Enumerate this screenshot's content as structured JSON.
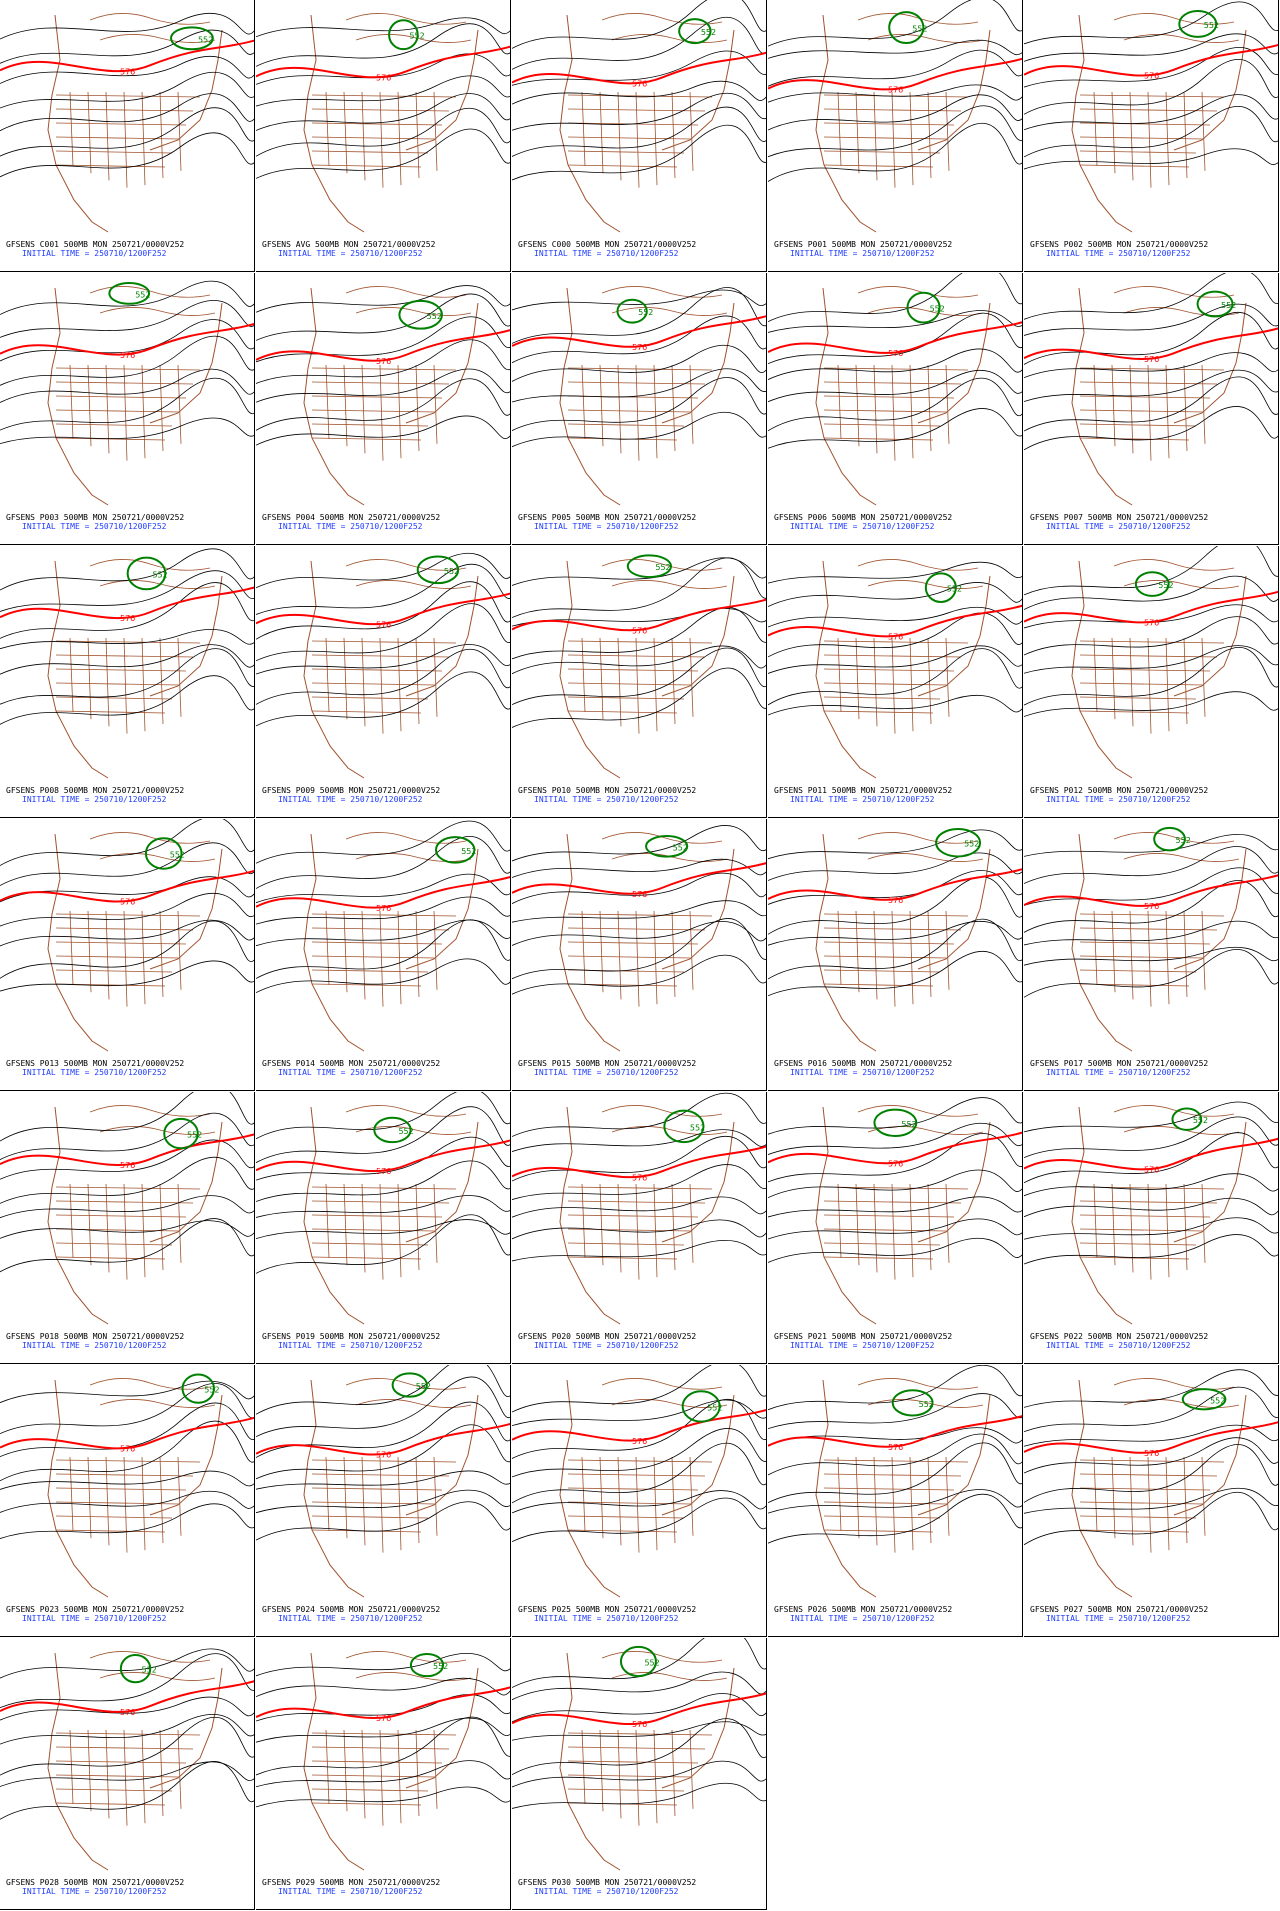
{
  "panels": [
    {
      "caption": "GFSENS C001 500MB MON 250721/0000V252",
      "init": "INITIAL TIME = 250710/1200F252"
    },
    {
      "caption": "GFSENS AVG 500MB MON 250721/0000V252",
      "init": "INITIAL TIME = 250710/1200F252"
    },
    {
      "caption": "GFSENS C000 500MB MON 250721/0000V252",
      "init": "INITIAL TIME = 250710/1200F252"
    },
    {
      "caption": "GFSENS P001 500MB MON 250721/0000V252",
      "init": "INITIAL TIME = 250710/1200F252"
    },
    {
      "caption": "GFSENS P002 500MB MON 250721/0000V252",
      "init": "INITIAL TIME = 250710/1200F252"
    },
    {
      "caption": "GFSENS P003 500MB MON 250721/0000V252",
      "init": "INITIAL TIME = 250710/1200F252"
    },
    {
      "caption": "GFSENS P004 500MB MON 250721/0000V252",
      "init": "INITIAL TIME = 250710/1200F252"
    },
    {
      "caption": "GFSENS P005 500MB MON 250721/0000V252",
      "init": "INITIAL TIME = 250710/1200F252"
    },
    {
      "caption": "GFSENS P006 500MB MON 250721/0000V252",
      "init": "INITIAL TIME = 250710/1200F252"
    },
    {
      "caption": "GFSENS P007 500MB MON 250721/0000V252",
      "init": "INITIAL TIME = 250710/1200F252"
    },
    {
      "caption": "GFSENS P008 500MB MON 250721/0000V252",
      "init": "INITIAL TIME = 250710/1200F252"
    },
    {
      "caption": "GFSENS P009 500MB MON 250721/0000V252",
      "init": "INITIAL TIME = 250710/1200F252"
    },
    {
      "caption": "GFSENS P010 500MB MON 250721/0000V252",
      "init": "INITIAL TIME = 250710/1200F252"
    },
    {
      "caption": "GFSENS P011 500MB MON 250721/0000V252",
      "init": "INITIAL TIME = 250710/1200F252"
    },
    {
      "caption": "GFSENS P012 500MB MON 250721/0000V252",
      "init": "INITIAL TIME = 250710/1200F252"
    },
    {
      "caption": "GFSENS P013 500MB MON 250721/0000V252",
      "init": "INITIAL TIME = 250710/1200F252"
    },
    {
      "caption": "GFSENS P014 500MB MON 250721/0000V252",
      "init": "INITIAL TIME = 250710/1200F252"
    },
    {
      "caption": "GFSENS P015 500MB MON 250721/0000V252",
      "init": "INITIAL TIME = 250710/1200F252"
    },
    {
      "caption": "GFSENS P016 500MB MON 250721/0000V252",
      "init": "INITIAL TIME = 250710/1200F252"
    },
    {
      "caption": "GFSENS P017 500MB MON 250721/0000V252",
      "init": "INITIAL TIME = 250710/1200F252"
    },
    {
      "caption": "GFSENS P018 500MB MON 250721/0000V252",
      "init": "INITIAL TIME = 250710/1200F252"
    },
    {
      "caption": "GFSENS P019 500MB MON 250721/0000V252",
      "init": "INITIAL TIME = 250710/1200F252"
    },
    {
      "caption": "GFSENS P020 500MB MON 250721/0000V252",
      "init": "INITIAL TIME = 250710/1200F252"
    },
    {
      "caption": "GFSENS P021 500MB MON 250721/0000V252",
      "init": "INITIAL TIME = 250710/1200F252"
    },
    {
      "caption": "GFSENS P022 500MB MON 250721/0000V252",
      "init": "INITIAL TIME = 250710/1200F252"
    },
    {
      "caption": "GFSENS P023 500MB MON 250721/0000V252",
      "init": "INITIAL TIME = 250710/1200F252"
    },
    {
      "caption": "GFSENS P024 500MB MON 250721/0000V252",
      "init": "INITIAL TIME = 250710/1200F252"
    },
    {
      "caption": "GFSENS P025 500MB MON 250721/0000V252",
      "init": "INITIAL TIME = 250710/1200F252"
    },
    {
      "caption": "GFSENS P026 500MB MON 250721/0000V252",
      "init": "INITIAL TIME = 250710/1200F252"
    },
    {
      "caption": "GFSENS P027 500MB MON 250721/0000V252",
      "init": "INITIAL TIME = 250710/1200F252"
    },
    {
      "caption": "GFSENS P028 500MB MON 250721/0000V252",
      "init": "INITIAL TIME = 250710/1200F252"
    },
    {
      "caption": "GFSENS P029 500MB MON 250721/0000V252",
      "init": "INITIAL TIME = 250710/1200F252"
    },
    {
      "caption": "GFSENS P030 500MB MON 250721/0000V252",
      "init": "INITIAL TIME = 250710/1200F252"
    }
  ],
  "contour_labels": {
    "red": "576",
    "green": "552"
  },
  "colors": {
    "ridge_line": "#ff0000",
    "trough_line": "#008000",
    "height_contours": "#000000",
    "geography": "#a0522d",
    "caption_text": "#000000",
    "init_text": "#1f3cff"
  }
}
